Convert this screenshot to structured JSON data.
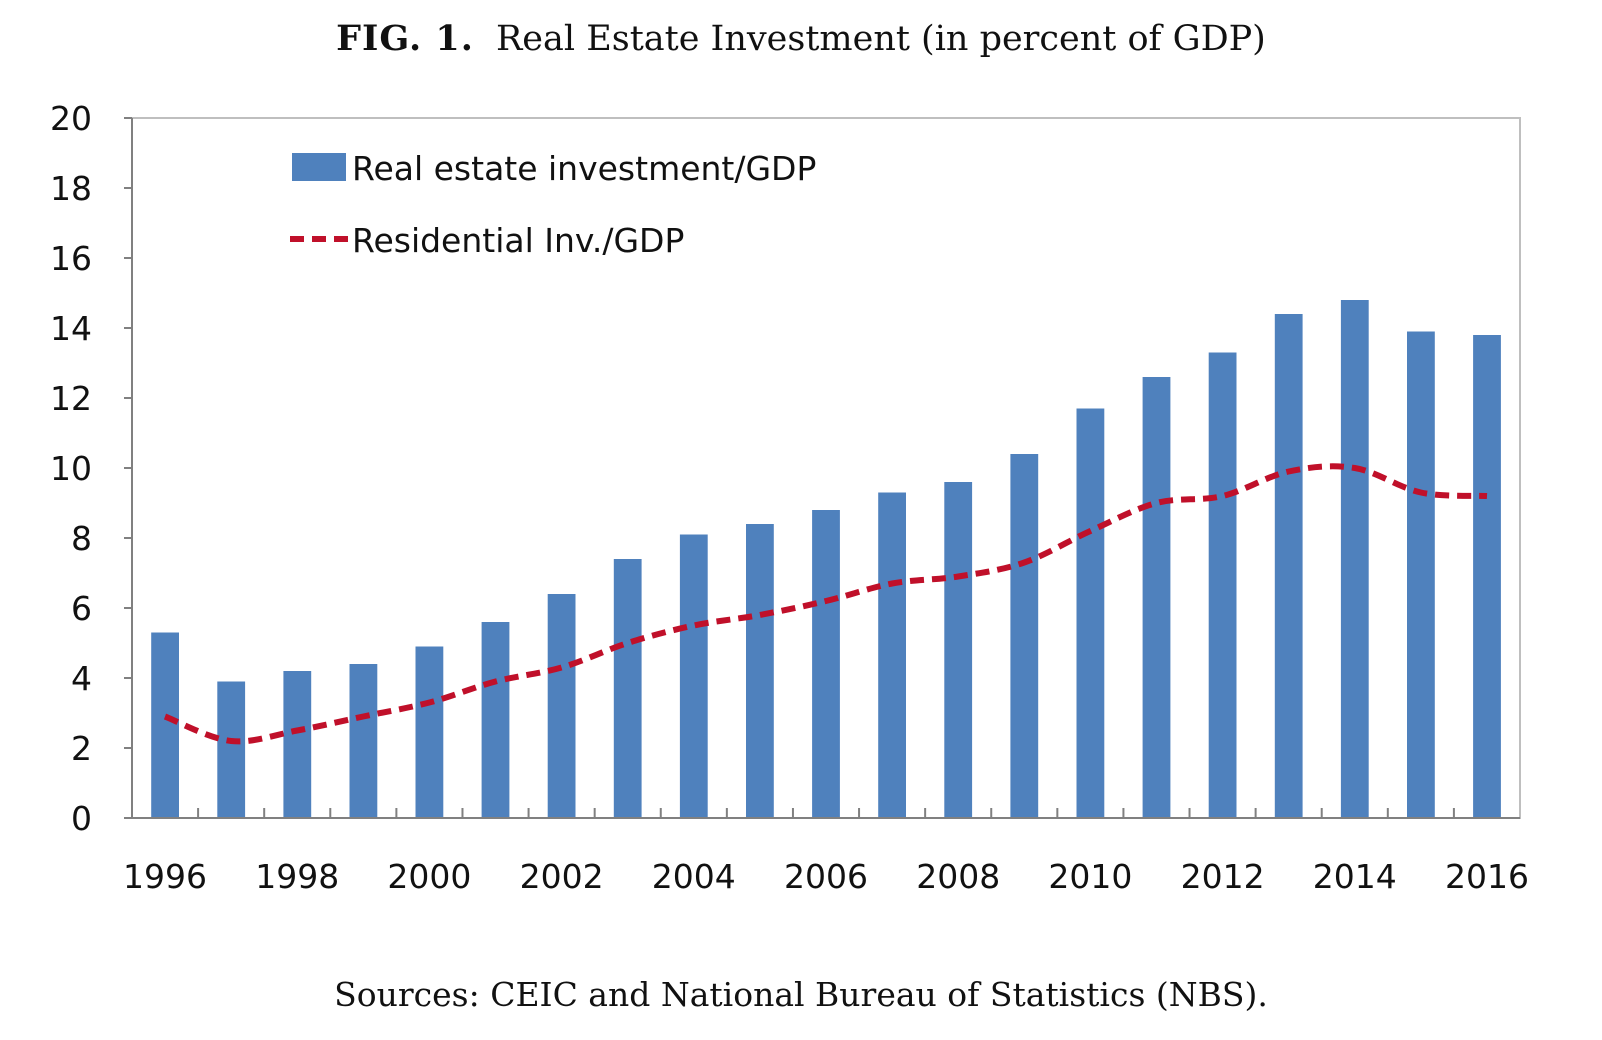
{
  "figure": {
    "label": "FIG. 1.",
    "title": "Real Estate Investment (in percent of GDP)",
    "source": "Sources: CEIC and National Bureau of Statistics (NBS)."
  },
  "chart_data": {
    "type": "bar",
    "title": "Real Estate Investment (in percent of GDP)",
    "xlabel": "",
    "ylabel": "",
    "ylim": [
      0,
      20
    ],
    "yticks": [
      0,
      2,
      4,
      6,
      8,
      10,
      12,
      14,
      16,
      18,
      20
    ],
    "categories": [
      "1996",
      "1997",
      "1998",
      "1999",
      "2000",
      "2001",
      "2002",
      "2003",
      "2004",
      "2005",
      "2006",
      "2007",
      "2008",
      "2009",
      "2010",
      "2011",
      "2012",
      "2013",
      "2014",
      "2015",
      "2016"
    ],
    "xtick_labels": [
      "1996",
      "1998",
      "2000",
      "2002",
      "2004",
      "2006",
      "2008",
      "2010",
      "2012",
      "2014",
      "2016"
    ],
    "grid": false,
    "legend_position": "top-left",
    "series": [
      {
        "name": "Real estate investment/GDP",
        "type": "bar",
        "color": "#4f81bd",
        "values": [
          5.3,
          3.9,
          4.2,
          4.4,
          4.9,
          5.6,
          6.4,
          7.4,
          8.1,
          8.4,
          8.8,
          9.3,
          9.6,
          10.4,
          11.7,
          12.6,
          13.3,
          14.4,
          14.8,
          13.9,
          13.8
        ]
      },
      {
        "name": "Residential Inv./GDP",
        "type": "line",
        "style": "dashed",
        "color": "#c0102a",
        "values": [
          2.9,
          2.2,
          2.5,
          2.9,
          3.3,
          3.9,
          4.3,
          5.0,
          5.5,
          5.8,
          6.2,
          6.7,
          6.9,
          7.3,
          8.2,
          9.0,
          9.2,
          9.9,
          10.0,
          9.3,
          9.2
        ]
      }
    ]
  }
}
